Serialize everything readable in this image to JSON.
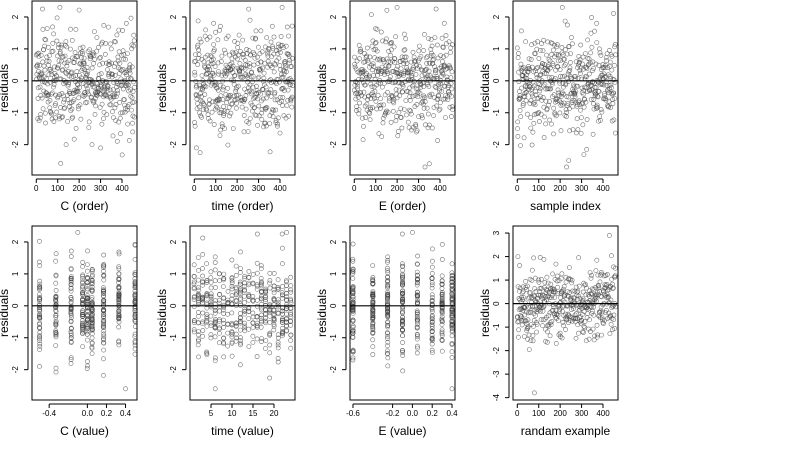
{
  "chart_data": [
    {
      "type": "scatter",
      "xlabel": "C (order)",
      "ylabel": "residuals",
      "xlim": [
        -20,
        470
      ],
      "ylim": [
        -2.95,
        2.5
      ],
      "xticks": [
        0,
        100,
        200,
        300,
        400
      ],
      "yticks": [
        -2,
        -1,
        0,
        1,
        2
      ],
      "hline": 0,
      "n": 460,
      "pattern": "order",
      "seed": 11,
      "points_sample": [
        [
          40,
          1.3
        ],
        [
          110,
          2.3
        ],
        [
          260,
          -2.0
        ],
        [
          300,
          -2.1
        ],
        [
          420,
          1.8
        ],
        [
          450,
          -1.6
        ]
      ]
    },
    {
      "type": "scatter",
      "xlabel": "time (order)",
      "ylabel": "residuals",
      "xlim": [
        -20,
        470
      ],
      "ylim": [
        -2.95,
        2.5
      ],
      "xticks": [
        0,
        100,
        200,
        300,
        400
      ],
      "yticks": [
        -2,
        -1,
        0,
        1,
        2
      ],
      "hline": 0,
      "n": 460,
      "pattern": "order",
      "seed": 23,
      "points_sample": [
        [
          10,
          -2.1
        ],
        [
          90,
          1.8
        ],
        [
          260,
          1.9
        ],
        [
          410,
          2.3
        ],
        [
          440,
          1.4
        ]
      ]
    },
    {
      "type": "scatter",
      "xlabel": "E (order)",
      "ylabel": "residuals",
      "xlim": [
        -20,
        470
      ],
      "ylim": [
        -2.95,
        2.5
      ],
      "xticks": [
        0,
        100,
        200,
        300,
        400
      ],
      "yticks": [
        -2,
        -1,
        0,
        1,
        2
      ],
      "hline": 0,
      "n": 460,
      "pattern": "order",
      "seed": 37,
      "points_sample": [
        [
          200,
          2.3
        ],
        [
          330,
          -2.7
        ],
        [
          350,
          -2.6
        ],
        [
          420,
          1.8
        ]
      ]
    },
    {
      "type": "scatter",
      "xlabel": "sample index",
      "ylabel": "residuals",
      "xlim": [
        -20,
        470
      ],
      "ylim": [
        -2.95,
        2.5
      ],
      "xticks": [
        0,
        100,
        200,
        300,
        400
      ],
      "yticks": [
        -2,
        -1,
        0,
        1,
        2
      ],
      "hline": 0,
      "n": 460,
      "pattern": "order",
      "seed": 51,
      "points_sample": [
        [
          210,
          2.3
        ],
        [
          230,
          -2.7
        ],
        [
          240,
          -2.5
        ],
        [
          370,
          1.8
        ]
      ]
    },
    {
      "type": "scatter",
      "xlabel": "C (value)",
      "ylabel": "residuals",
      "xlim": [
        -0.58,
        0.52
      ],
      "ylim": [
        -2.95,
        2.5
      ],
      "xticks": [
        -0.4,
        0.0,
        0.2,
        0.4
      ],
      "xtick_labels": [
        "-0.4",
        "0.0",
        "0.2",
        "0.4"
      ],
      "yticks": [
        -2,
        -1,
        0,
        1,
        2
      ],
      "hline": 0,
      "n": 460,
      "pattern": "discrete",
      "levels": [
        -0.5,
        -0.33,
        -0.17,
        -0.05,
        0.0,
        0.05,
        0.17,
        0.33,
        0.5
      ],
      "seed": 61,
      "points_sample": [
        [
          -0.1,
          2.3
        ],
        [
          0.4,
          -2.6
        ],
        [
          0.5,
          1.9
        ]
      ]
    },
    {
      "type": "scatter",
      "xlabel": "time (value)",
      "ylabel": "residuals",
      "xlim": [
        0,
        25
      ],
      "ylim": [
        -2.95,
        2.5
      ],
      "xticks": [
        5,
        10,
        15,
        20
      ],
      "yticks": [
        -2,
        -1,
        0,
        1,
        2
      ],
      "hline": 0,
      "n": 460,
      "pattern": "discrete",
      "levels": [
        1,
        2,
        3,
        4,
        5,
        6,
        7,
        8,
        9,
        10,
        11,
        12,
        13,
        14,
        15,
        16,
        17,
        18,
        19,
        20,
        21,
        22,
        23,
        24
      ],
      "seed": 73,
      "points_sample": [
        [
          6,
          -2.6
        ],
        [
          23,
          2.3
        ]
      ]
    },
    {
      "type": "scatter",
      "xlabel": "E (value)",
      "ylabel": "residuals",
      "xlim": [
        -0.63,
        0.43
      ],
      "ylim": [
        -2.95,
        2.5
      ],
      "xticks": [
        -0.6,
        -0.2,
        0.0,
        0.2,
        0.4
      ],
      "xtick_labels": [
        "-0.6",
        "-0.2",
        "0.0",
        "0.2",
        "0.4"
      ],
      "yticks": [
        -2,
        -1,
        0,
        1,
        2
      ],
      "hline": 0,
      "n": 460,
      "pattern": "discrete",
      "levels": [
        -0.6,
        -0.4,
        -0.25,
        -0.1,
        0.05,
        0.2,
        0.3,
        0.4
      ],
      "seed": 89,
      "points_sample": [
        [
          0.0,
          2.3
        ],
        [
          0.4,
          -2.6
        ]
      ]
    },
    {
      "type": "scatter",
      "xlabel": "randam example",
      "ylabel": "residuals",
      "xlim": [
        -20,
        470
      ],
      "ylim": [
        -4.1,
        3.3
      ],
      "xticks": [
        0,
        100,
        200,
        300,
        400
      ],
      "yticks": [
        -4,
        -3,
        -2,
        -1,
        0,
        1,
        2,
        3
      ],
      "hline": 0,
      "n": 460,
      "pattern": "order",
      "seed": 97,
      "points_sample": [
        [
          80,
          -3.8
        ],
        [
          430,
          2.9
        ]
      ]
    }
  ]
}
